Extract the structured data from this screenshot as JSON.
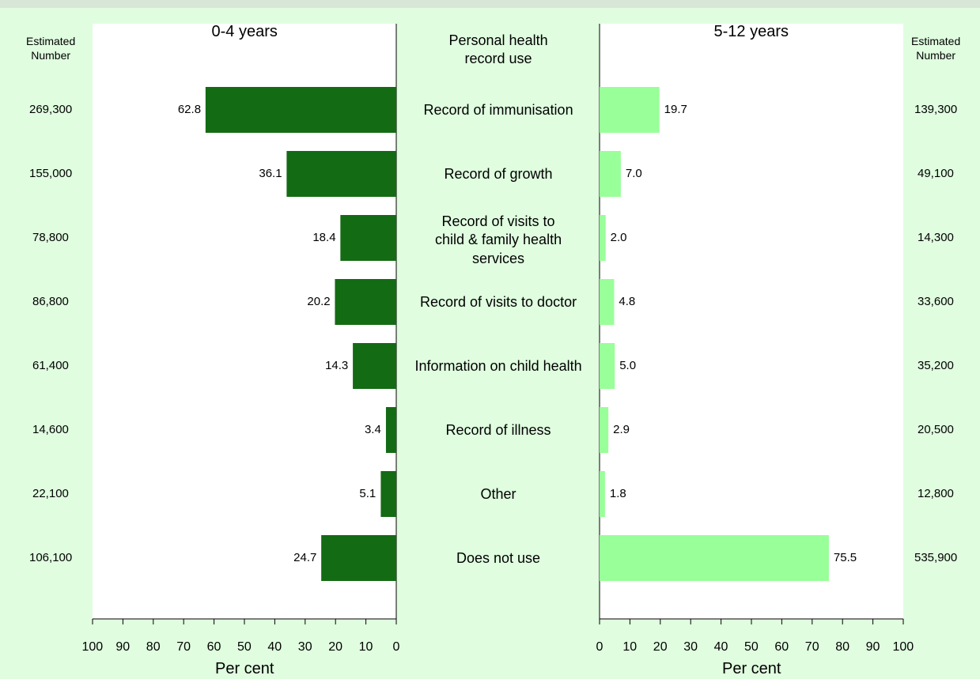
{
  "chart_data": [
    {
      "type": "bar",
      "orientation": "horizontal",
      "title": "0-4 years",
      "category_label": "Personal health\nrecord use",
      "categories": [
        "Record of immunisation",
        "Record of growth",
        "Record of visits to\nchild & family health\nservices",
        "Record of visits to doctor",
        "Information on child health",
        "Record of illness",
        "Other",
        "Does not use"
      ],
      "values": [
        62.8,
        36.1,
        18.4,
        20.2,
        14.3,
        3.4,
        5.1,
        24.7
      ],
      "value_labels": [
        "62.8",
        "36.1",
        "18.4",
        "20.2",
        "14.3",
        "3.4",
        "5.1",
        "24.7"
      ],
      "estimated_number": {
        "title": "Estimated\nNumber",
        "values": [
          "269,300",
          "155,000",
          "78,800",
          "86,800",
          "61,400",
          "14,600",
          "22,100",
          "106,100"
        ]
      },
      "color": "#136b13",
      "xlim": [
        100,
        0
      ],
      "xticks": [
        100,
        90,
        80,
        70,
        60,
        50,
        40,
        30,
        20,
        10,
        0
      ],
      "xlabel": "Per cent"
    },
    {
      "type": "bar",
      "orientation": "horizontal",
      "title": "5-12 years",
      "values": [
        19.7,
        7.0,
        2.0,
        4.8,
        5.0,
        2.9,
        1.8,
        75.5
      ],
      "value_labels": [
        "19.7",
        "7.0",
        "2.0",
        "4.8",
        "5.0",
        "2.9",
        "1.8",
        "75.5"
      ],
      "estimated_number": {
        "title": "Estimated\nNumber",
        "values": [
          "139,300",
          "49,100",
          "14,300",
          "33,600",
          "35,200",
          "20,500",
          "12,800",
          "535,900"
        ]
      },
      "color": "#99ff99",
      "xlim": [
        0,
        100
      ],
      "xticks": [
        0,
        10,
        20,
        30,
        40,
        50,
        60,
        70,
        80,
        90,
        100
      ],
      "xlabel": "Per cent"
    }
  ]
}
